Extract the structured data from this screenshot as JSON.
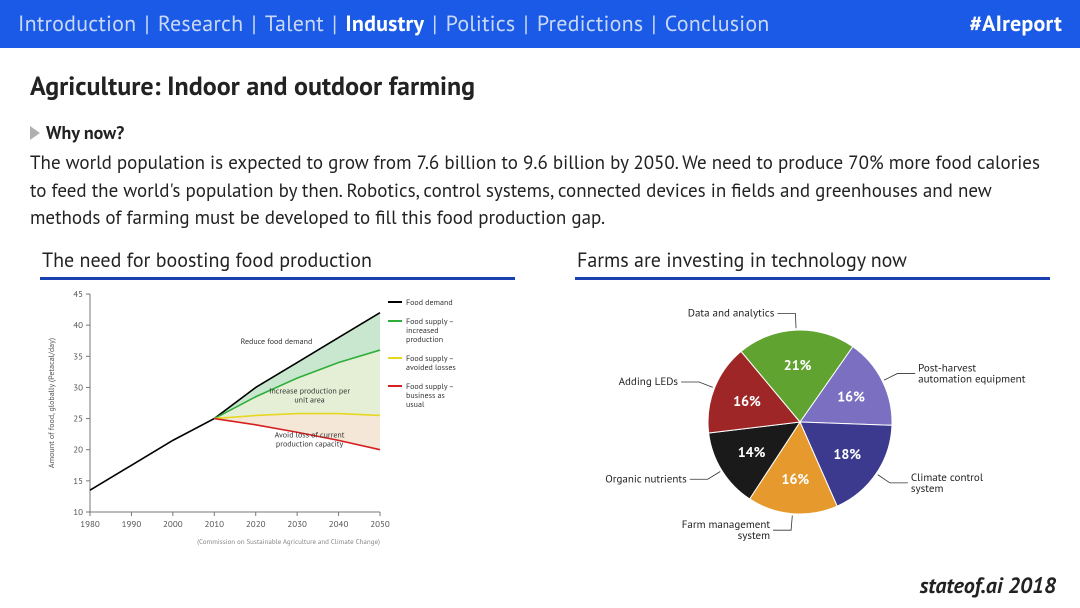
{
  "topbar": {
    "items": [
      "Introduction",
      "Research",
      "Talent",
      "Industry",
      "Politics",
      "Predictions",
      "Conclusion"
    ],
    "active_index": 3,
    "separator": "|",
    "hashtag": "#AIreport",
    "bg_color": "#1a5ae6",
    "inactive_color": "#c9d8f5",
    "active_color": "#ffffff"
  },
  "title": "Agriculture: Indoor and outdoor farming",
  "why_label": "Why now?",
  "body_text": "The world population is expected to grow from 7.6 billion to 9.6 billion by 2050. We need to produce 70% more food calories to feed the world's population by then. Robotics, control systems, connected devices in fields and greenhouses and new methods of farming must be developed to fill this food production gap.",
  "line_chart": {
    "type": "line-area",
    "title": "The need for boosting food production",
    "title_underline_color": "#1a3fb0",
    "background_color": "#ffffff",
    "xlabel": "",
    "ylabel": "Amount of food, globally (Petacal/day)",
    "ylabel_fontsize": 8,
    "x_ticks": [
      1980,
      1990,
      2000,
      2010,
      2020,
      2030,
      2040,
      2050
    ],
    "y_ticks": [
      10,
      15,
      20,
      25,
      30,
      35,
      40,
      45
    ],
    "xlim": [
      1980,
      2050
    ],
    "ylim": [
      10,
      45
    ],
    "axis_color": "#777777",
    "grid": false,
    "series": {
      "food_demand": {
        "label": "Food demand",
        "color": "#000000",
        "points": [
          [
            1980,
            13.5
          ],
          [
            1990,
            17.5
          ],
          [
            2000,
            21.5
          ],
          [
            2010,
            25
          ],
          [
            2020,
            30
          ],
          [
            2030,
            34
          ],
          [
            2040,
            38
          ],
          [
            2050,
            42
          ]
        ]
      },
      "increased_production": {
        "label": "Food supply – increased production",
        "color": "#2fae3b",
        "points": [
          [
            2010,
            25
          ],
          [
            2020,
            28.5
          ],
          [
            2030,
            31.5
          ],
          [
            2040,
            34
          ],
          [
            2050,
            36
          ]
        ]
      },
      "avoided_losses": {
        "label": "Food supply – avoided losses",
        "color": "#e6d720",
        "points": [
          [
            2010,
            25
          ],
          [
            2020,
            25.5
          ],
          [
            2030,
            25.8
          ],
          [
            2040,
            25.8
          ],
          [
            2050,
            25.5
          ]
        ]
      },
      "business_as_usual": {
        "label": "Food supply – business as usual",
        "color": "#d61f1f",
        "points": [
          [
            2010,
            25
          ],
          [
            2020,
            24
          ],
          [
            2030,
            22.8
          ],
          [
            2040,
            21.5
          ],
          [
            2050,
            20
          ]
        ]
      }
    },
    "area_fills": [
      {
        "between": [
          "food_demand",
          "increased_production"
        ],
        "color": "#c9e7cf"
      },
      {
        "between": [
          "increased_production",
          "avoided_losses"
        ],
        "color": "#e5efd6"
      },
      {
        "between": [
          "avoided_losses",
          "business_as_usual"
        ],
        "color": "#f4e7d8"
      }
    ],
    "annotations": [
      {
        "text": "Reduce food demand",
        "x": 2025,
        "y": 37
      },
      {
        "text": "Increase production per unit area",
        "x": 2033,
        "y": 29
      },
      {
        "text": "Avoid loss of current production capacity",
        "x": 2033,
        "y": 22
      }
    ],
    "annotation_fontsize": 8,
    "annotation_color": "#333333",
    "legend_position": "right",
    "legend_fontsize": 8,
    "source_text": "(Commission on Sustainable Agriculture and Climate Change)",
    "source_fontsize": 7
  },
  "pie_chart": {
    "type": "pie",
    "title": "Farms are investing in technology now",
    "title_underline_color": "#1a3fb0",
    "background_color": "#ffffff",
    "pct_label_color": "#ffffff",
    "pct_label_fontsize": 14,
    "outer_label_fontsize": 11,
    "outer_label_color": "#222222",
    "leader_line_color": "#333333",
    "start_angle_deg": -55,
    "slices": [
      {
        "label": "Post-harvest automation equipment",
        "pct": 16,
        "color": "#7a6fc0"
      },
      {
        "label": "Climate control system",
        "pct": 18,
        "color": "#3b3a8e"
      },
      {
        "label": "Farm management system",
        "pct": 16,
        "color": "#e69a2e"
      },
      {
        "label": "Organic nutrients",
        "pct": 14,
        "color": "#1a1a1a"
      },
      {
        "label": "Adding LEDs",
        "pct": 16,
        "color": "#9f2626"
      },
      {
        "label": "Data and analytics",
        "pct": 21,
        "color": "#61a331"
      }
    ]
  },
  "footer": "stateof.ai 2018"
}
